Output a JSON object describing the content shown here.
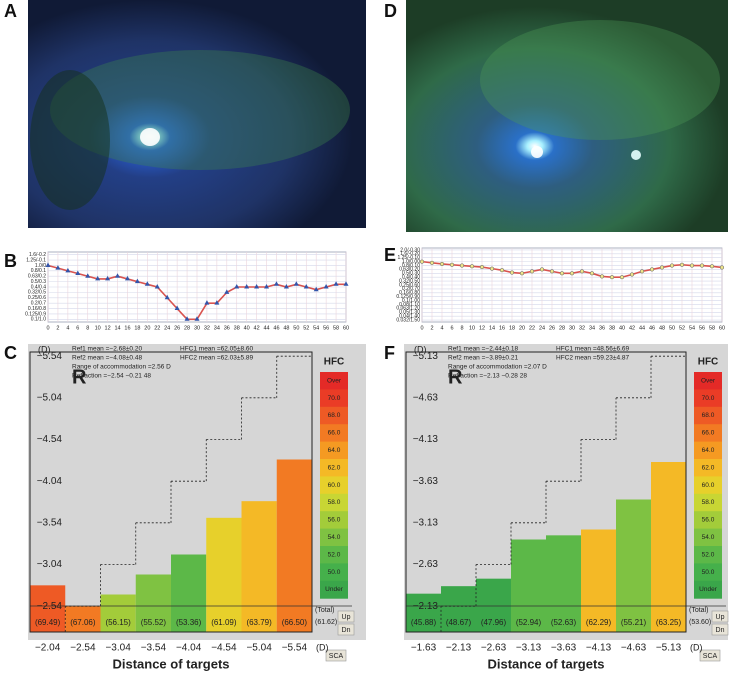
{
  "panel_labels": [
    "A",
    "B",
    "C",
    "D",
    "E",
    "F"
  ],
  "chart_data": [
    {
      "type": "line",
      "xlim": [
        0,
        60
      ],
      "ylim": [
        1.05,
        -0.25
      ],
      "grid": true,
      "xticks": [
        0,
        2,
        4,
        6,
        8,
        10,
        12,
        14,
        16,
        18,
        20,
        22,
        24,
        26,
        28,
        30,
        32,
        34,
        36,
        38,
        40,
        42,
        44,
        46,
        48,
        50,
        52,
        54,
        56,
        58,
        60
      ],
      "yticks": [
        {
          "value": -0.2,
          "label": "1.6/-0.2"
        },
        {
          "value": -0.1,
          "label": "1.25/-0.1"
        },
        {
          "value": 0,
          "label": "1.0/0"
        },
        {
          "value": 0.1,
          "label": "0.8/0.1"
        },
        {
          "value": 0.2,
          "label": "0.63/0.2"
        },
        {
          "value": 0.3,
          "label": "0.5/0.3"
        },
        {
          "value": 0.4,
          "label": "0.4/0.4"
        },
        {
          "value": 0.5,
          "label": "0.32/0.5"
        },
        {
          "value": 0.6,
          "label": "0.25/0.6"
        },
        {
          "value": 0.7,
          "label": "0.2/0.7"
        },
        {
          "value": 0.8,
          "label": "0.16/0.8"
        },
        {
          "value": 0.9,
          "label": "0.125/0.9"
        },
        {
          "value": 1.0,
          "label": "0.1/1.0"
        }
      ],
      "x": [
        0,
        2,
        4,
        6,
        8,
        10,
        12,
        14,
        16,
        18,
        20,
        22,
        24,
        26,
        28,
        30,
        32,
        34,
        36,
        38,
        40,
        42,
        44,
        46,
        48,
        50,
        52,
        54,
        56,
        58,
        60
      ],
      "series": [
        {
          "color": "#d9534f",
          "marker": "triangle",
          "marker_color": "#3355aa",
          "values": [
            0,
            0.05,
            0.1,
            0.15,
            0.2,
            0.25,
            0.25,
            0.2,
            0.25,
            0.3,
            0.35,
            0.4,
            0.6,
            0.8,
            1.0,
            1.0,
            0.7,
            0.7,
            0.5,
            0.4,
            0.4,
            0.4,
            0.4,
            0.35,
            0.4,
            0.35,
            0.4,
            0.45,
            0.4,
            0.35,
            0.35
          ]
        }
      ]
    },
    {
      "type": "hfc",
      "eye": "R",
      "y_unit": "(D)",
      "x_unit": "(D)",
      "x_label": "Distance of targets",
      "stats_left": [
        "Ref1 mean =−2.68±0.20",
        "Ref2 mean =−4.08±0.48",
        "Range of accommodation =2.56 D",
        "Refraction =−2.54 −0.21 48"
      ],
      "stats_right": [
        "HFC1 mean =62.05±8.60",
        "HFC2 mean =62.03±5.89"
      ],
      "ylim": [
        -2.23,
        -5.59
      ],
      "yticks": [
        {
          "value": -5.54,
          "label": "−5.54"
        },
        {
          "value": -5.04,
          "label": "−5.04"
        },
        {
          "value": -4.54,
          "label": "−4.54"
        },
        {
          "value": -4.04,
          "label": "−4.04"
        },
        {
          "value": -3.54,
          "label": "−3.54"
        },
        {
          "value": -3.04,
          "label": "−3.04"
        },
        {
          "value": -2.54,
          "label": "−2.54"
        }
      ],
      "xticks": [
        {
          "value": -2.04,
          "label": "−2.04"
        },
        {
          "value": -2.54,
          "label": "−2.54"
        },
        {
          "value": -3.04,
          "label": "−3.04"
        },
        {
          "value": -3.54,
          "label": "−3.54"
        },
        {
          "value": -4.04,
          "label": "−4.04"
        },
        {
          "value": -4.54,
          "label": "−4.54"
        },
        {
          "value": -5.04,
          "label": "−5.04"
        },
        {
          "value": -5.54,
          "label": "−5.54"
        }
      ],
      "values": [
        -2.79,
        -2.54,
        -2.68,
        -2.92,
        -3.16,
        -3.6,
        -3.8,
        -4.3
      ],
      "hfc": [
        69.49,
        67.06,
        56.15,
        55.52,
        53.36,
        61.09,
        63.79,
        66.5
      ],
      "hfc_labels": [
        "(69.49)",
        "(67.06)",
        "(56.15)",
        "(55.52)",
        "(53.36)",
        "(61.09)",
        "(63.79)",
        "(66.50)"
      ],
      "total": {
        "label": "(Total)",
        "value": 61.62,
        "value_label": "(61.62)"
      },
      "legend_title": "HFC",
      "color_scale": [
        {
          "label": "Over",
          "color": "#e42a27"
        },
        {
          "value": 70,
          "label": "70.0",
          "color": "#ea3c26"
        },
        {
          "value": 68,
          "label": "68.0",
          "color": "#ee5a25"
        },
        {
          "value": 66,
          "label": "66.0",
          "color": "#f27a23"
        },
        {
          "value": 64,
          "label": "64.0",
          "color": "#f59a22"
        },
        {
          "value": 62,
          "label": "62.0",
          "color": "#f4b926"
        },
        {
          "value": 60,
          "label": "60.0",
          "color": "#e7d02b"
        },
        {
          "value": 58,
          "label": "58.0",
          "color": "#c8d634"
        },
        {
          "value": 56,
          "label": "56.0",
          "color": "#a3cc3a"
        },
        {
          "value": 54,
          "label": "54.0",
          "color": "#7fc242"
        },
        {
          "value": 52,
          "label": "52.0",
          "color": "#5cb848"
        },
        {
          "value": 50,
          "label": "50.0",
          "color": "#45b04b"
        },
        {
          "label": "Under",
          "color": "#3aa64a"
        }
      ],
      "buttons": [
        "Up",
        "Dn",
        "SCA"
      ]
    },
    {
      "type": "line",
      "xlim": [
        0,
        60
      ],
      "ylim": [
        1.55,
        -0.35
      ],
      "grid": true,
      "xticks": [
        0,
        2,
        4,
        6,
        8,
        10,
        12,
        14,
        16,
        18,
        20,
        22,
        24,
        26,
        28,
        30,
        32,
        34,
        36,
        38,
        40,
        42,
        44,
        46,
        48,
        50,
        52,
        54,
        56,
        58,
        60
      ],
      "yticks": [
        {
          "value": -0.3,
          "label": "2.0/-0.30"
        },
        {
          "value": -0.2,
          "label": "1.6/-0.20"
        },
        {
          "value": -0.1,
          "label": "1.25/-0.10"
        },
        {
          "value": 0,
          "label": "1.0/0.00"
        },
        {
          "value": 0.1,
          "label": "0.8/0.10"
        },
        {
          "value": 0.2,
          "label": "0.63/0.20"
        },
        {
          "value": 0.3,
          "label": "0.5/0.30"
        },
        {
          "value": 0.4,
          "label": "0.4/0.40"
        },
        {
          "value": 0.5,
          "label": "0.32/0.50"
        },
        {
          "value": 0.6,
          "label": "0.25/0.60"
        },
        {
          "value": 0.7,
          "label": "0.2/0.70"
        },
        {
          "value": 0.8,
          "label": "0.16/0.80"
        },
        {
          "value": 0.9,
          "label": "0.125/0.90"
        },
        {
          "value": 1.0,
          "label": "0.1/1.00"
        },
        {
          "value": 1.1,
          "label": "0.08/1.10"
        },
        {
          "value": 1.2,
          "label": "0.063/1.20"
        },
        {
          "value": 1.3,
          "label": "0.05/1.30"
        },
        {
          "value": 1.4,
          "label": "0.04/1.40"
        },
        {
          "value": 1.5,
          "label": "0.032/1.50"
        }
      ],
      "x": [
        0,
        2,
        4,
        6,
        8,
        10,
        12,
        14,
        16,
        18,
        20,
        22,
        24,
        26,
        28,
        30,
        32,
        34,
        36,
        38,
        40,
        42,
        44,
        46,
        48,
        50,
        52,
        54,
        56,
        58,
        60
      ],
      "series": [
        {
          "color": "#d9534f",
          "marker": "circle",
          "marker_color": "#f0e68c",
          "values": [
            0,
            0.03,
            0.06,
            0.08,
            0.1,
            0.12,
            0.14,
            0.18,
            0.22,
            0.28,
            0.3,
            0.25,
            0.2,
            0.25,
            0.3,
            0.3,
            0.25,
            0.3,
            0.38,
            0.4,
            0.4,
            0.33,
            0.25,
            0.2,
            0.15,
            0.1,
            0.08,
            0.1,
            0.1,
            0.12,
            0.15
          ]
        }
      ]
    },
    {
      "type": "hfc",
      "eye": "R",
      "y_unit": "(D)",
      "x_unit": "(D)",
      "x_label": "Distance of targets",
      "stats_left": [
        "Ref1 mean =−2.44±0.18",
        "Ref2 mean =−3.89±0.21",
        "Range of accommodation =2.07 D",
        "Refraction =−2.13 −0.28 28"
      ],
      "stats_right": [
        "HFC1 mean =48.56±6.69",
        "HFC2 mean =59.23±4.87"
      ],
      "ylim": [
        -1.82,
        -5.18
      ],
      "yticks": [
        {
          "value": -5.13,
          "label": "−5.13"
        },
        {
          "value": -4.63,
          "label": "−4.63"
        },
        {
          "value": -4.13,
          "label": "−4.13"
        },
        {
          "value": -3.63,
          "label": "−3.63"
        },
        {
          "value": -3.13,
          "label": "−3.13"
        },
        {
          "value": -2.63,
          "label": "−2.63"
        },
        {
          "value": -2.13,
          "label": "−2.13"
        }
      ],
      "xticks": [
        {
          "value": -1.63,
          "label": "−1.63"
        },
        {
          "value": -2.13,
          "label": "−2.13"
        },
        {
          "value": -2.63,
          "label": "−2.63"
        },
        {
          "value": -3.13,
          "label": "−3.13"
        },
        {
          "value": -3.63,
          "label": "−3.63"
        },
        {
          "value": -4.13,
          "label": "−4.13"
        },
        {
          "value": -4.63,
          "label": "−4.63"
        },
        {
          "value": -5.13,
          "label": "−5.13"
        }
      ],
      "values": [
        -2.28,
        -2.37,
        -2.46,
        -2.93,
        -2.98,
        -3.05,
        -3.41,
        -3.86
      ],
      "hfc": [
        45.88,
        48.67,
        47.96,
        52.94,
        52.63,
        62.29,
        55.21,
        63.25
      ],
      "hfc_labels": [
        "(45.88)",
        "(48.67)",
        "(47.96)",
        "(52.94)",
        "(52.63)",
        "(62.29)",
        "(55.21)",
        "(63.25)"
      ],
      "total": {
        "label": "(Total)",
        "value": 53.6,
        "value_label": "(53.60)"
      },
      "legend_title": "HFC",
      "color_scale": [
        {
          "label": "Over",
          "color": "#e42a27"
        },
        {
          "value": 70,
          "label": "70.0",
          "color": "#ea3c26"
        },
        {
          "value": 68,
          "label": "68.0",
          "color": "#ee5a25"
        },
        {
          "value": 66,
          "label": "66.0",
          "color": "#f27a23"
        },
        {
          "value": 64,
          "label": "64.0",
          "color": "#f59a22"
        },
        {
          "value": 62,
          "label": "62.0",
          "color": "#f4b926"
        },
        {
          "value": 60,
          "label": "60.0",
          "color": "#e7d02b"
        },
        {
          "value": 58,
          "label": "58.0",
          "color": "#c8d634"
        },
        {
          "value": 56,
          "label": "56.0",
          "color": "#a3cc3a"
        },
        {
          "value": 54,
          "label": "54.0",
          "color": "#7fc242"
        },
        {
          "value": 52,
          "label": "52.0",
          "color": "#5cb848"
        },
        {
          "value": 50,
          "label": "50.0",
          "color": "#45b04b"
        },
        {
          "label": "Under",
          "color": "#3aa64a"
        }
      ],
      "buttons": [
        "Up",
        "Dn",
        "SCA"
      ]
    }
  ]
}
